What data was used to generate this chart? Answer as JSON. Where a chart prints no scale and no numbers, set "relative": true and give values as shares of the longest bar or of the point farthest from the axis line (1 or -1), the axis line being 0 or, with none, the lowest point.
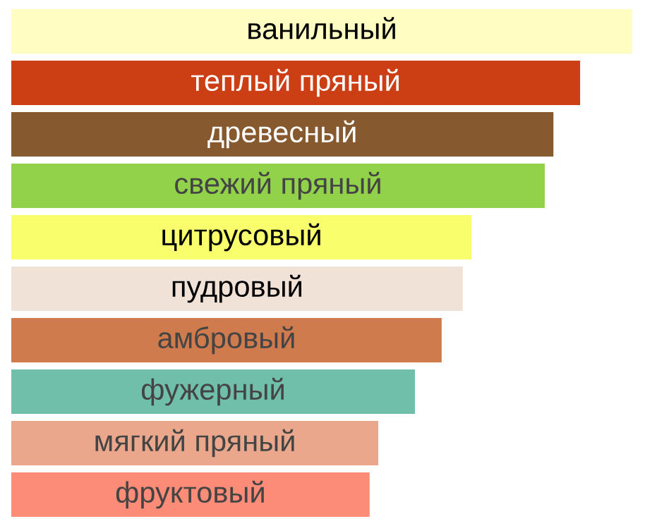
{
  "chart_data": {
    "type": "bar",
    "orientation": "horizontal",
    "relative": true,
    "categories": [
      "ванильный",
      "теплый пряный",
      "древесный",
      "свежий пряный",
      "цитрусовый",
      "пудровый",
      "амбровый",
      "фужерный",
      "мягкий пряный",
      "фруктовый"
    ],
    "values": [
      1,
      0.916,
      0.873,
      0.859,
      0.741,
      0.727,
      0.693,
      0.65,
      0.591,
      0.577
    ],
    "colors": [
      "#fffdc2",
      "#cc3f14",
      "#86592f",
      "#92d24a",
      "#f9ff6c",
      "#f0e2d7",
      "#cf7b4e",
      "#70bfab",
      "#eaa78b",
      "#fc8b77"
    ]
  }
}
